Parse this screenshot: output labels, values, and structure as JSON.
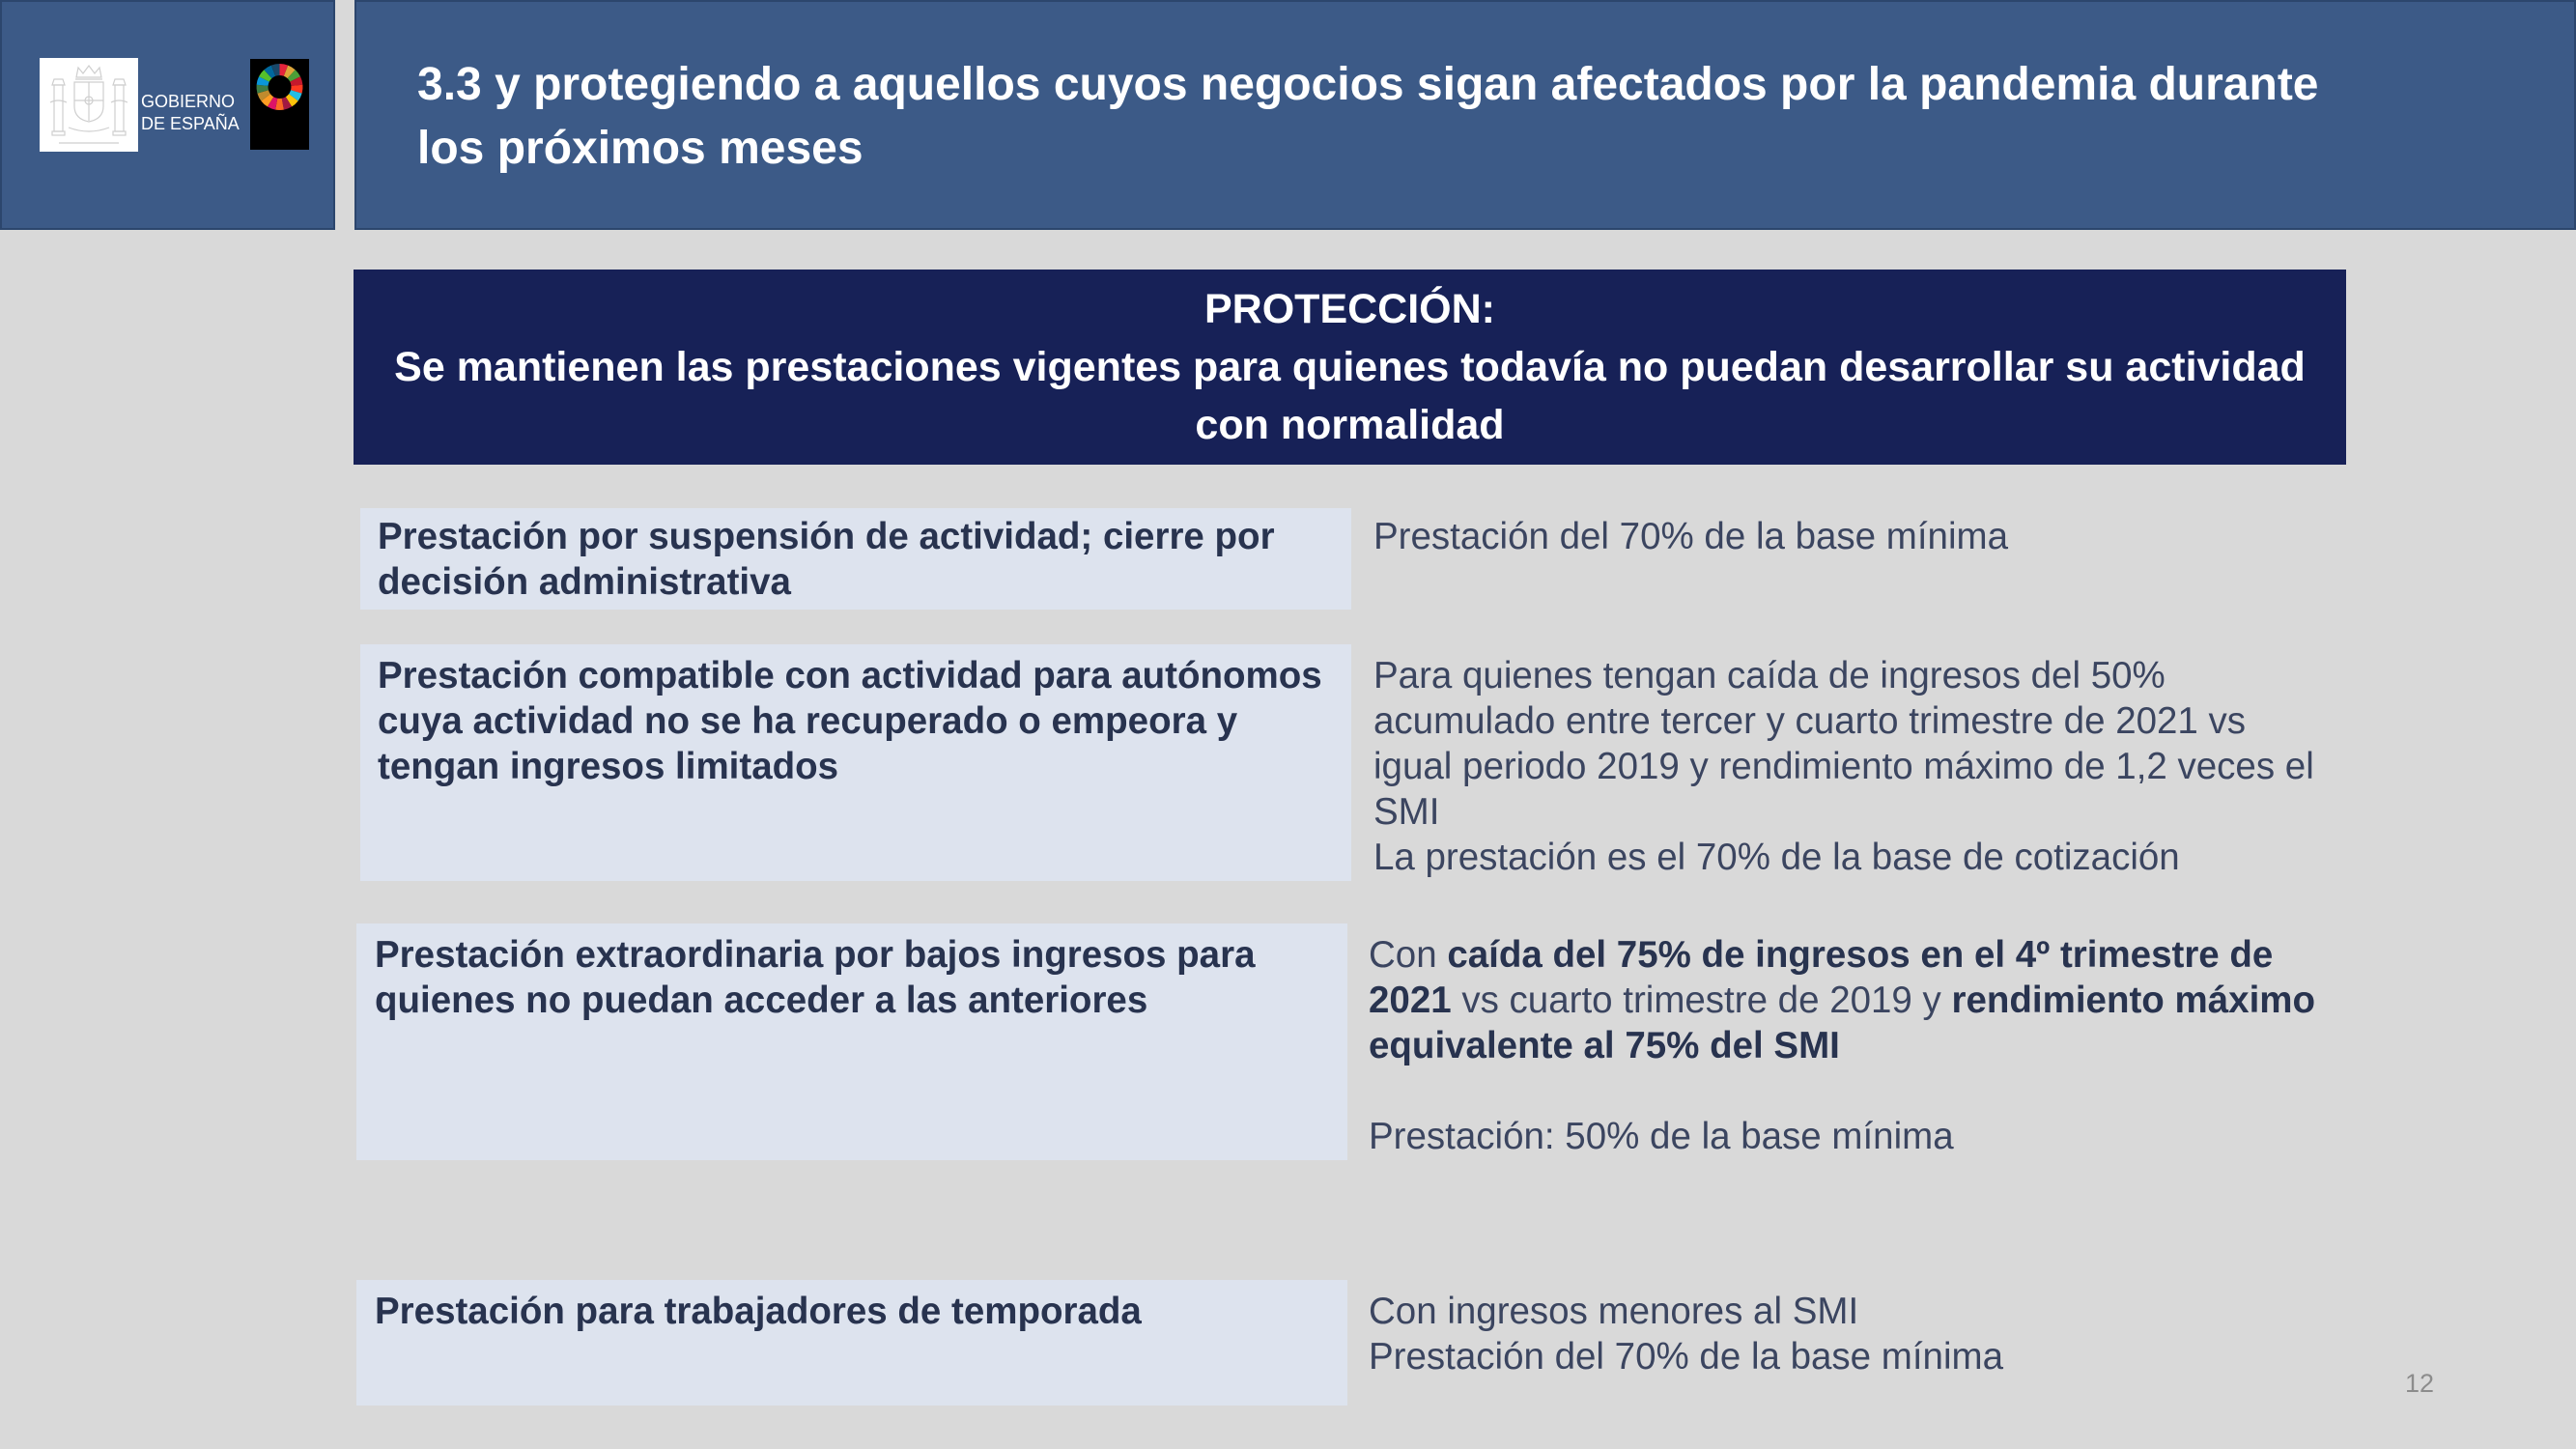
{
  "header": {
    "logo": {
      "line1": "GOBIERNO",
      "line2": "DE ESPAÑA",
      "emblem_icon": "spain-coat-of-arms-icon",
      "sdg_icon": "sdg-wheel-icon"
    },
    "title_lines": [
      "3.3 y protegiendo a aquellos cuyos negocios sigan afectados por la pandemia durante",
      "los próximos meses"
    ]
  },
  "banner": {
    "heading": "PROTECCIÓN:",
    "lines": [
      "Se mantienen las prestaciones vigentes para quienes todavía no puedan desarrollar su actividad",
      "con normalidad"
    ]
  },
  "rows": [
    {
      "label_lines": [
        "Prestación por suspensión de actividad; cierre por",
        "decisión administrativa"
      ],
      "detail_lines": [
        "Prestación del 70% de la base mínima"
      ]
    },
    {
      "label_lines": [
        "Prestación compatible con actividad para autónomos",
        "cuya actividad no se ha recuperado o empeora y",
        "tengan ingresos limitados"
      ],
      "detail_lines": [
        "Para quienes tengan caída de ingresos del 50%",
        "acumulado entre tercer y cuarto trimestre de 2021 vs",
        "igual periodo 2019 y rendimiento máximo de 1,2 veces el",
        "SMI",
        "La prestación es el 70% de la base de cotización"
      ]
    },
    {
      "label_lines": [
        "Prestación extraordinaria por bajos ingresos para",
        "quienes no puedan acceder a las anteriores"
      ],
      "detail_segments": [
        [
          "Con ",
          "caída del 75% de ingresos en el 4º trimestre de"
        ],
        [
          "2021",
          " vs cuarto trimestre de 2019 y ",
          "rendimiento máximo"
        ],
        [
          "equivalente al 75% del SMI"
        ]
      ],
      "detail_note": "Prestación: 50% de la base mínima"
    },
    {
      "label_lines": [
        "Prestación para trabajadores de temporada"
      ],
      "detail_lines": [
        "Con ingresos menores al SMI",
        "Prestación del 70% de la base mínima"
      ]
    }
  ],
  "page_number": "12",
  "sdg_wheel_colors": [
    "#E5243B",
    "#DDA63A",
    "#4C9F38",
    "#C5192D",
    "#FF3A21",
    "#26BDE2",
    "#FCC30B",
    "#A21942",
    "#FD6925",
    "#DD1367",
    "#FD9D24",
    "#BF8B2E",
    "#3F7E44",
    "#0A97D9",
    "#56C02B",
    "#00689D",
    "#19486A"
  ],
  "colors": {
    "background": "#d9d9d9",
    "header": "#3c5a87",
    "header_border": "#2c466d",
    "banner": "#172157",
    "cell": "#dde3ee",
    "label_text": "#28334f",
    "detail_text": "#3b4560",
    "page_number": "#8c8c8c"
  }
}
